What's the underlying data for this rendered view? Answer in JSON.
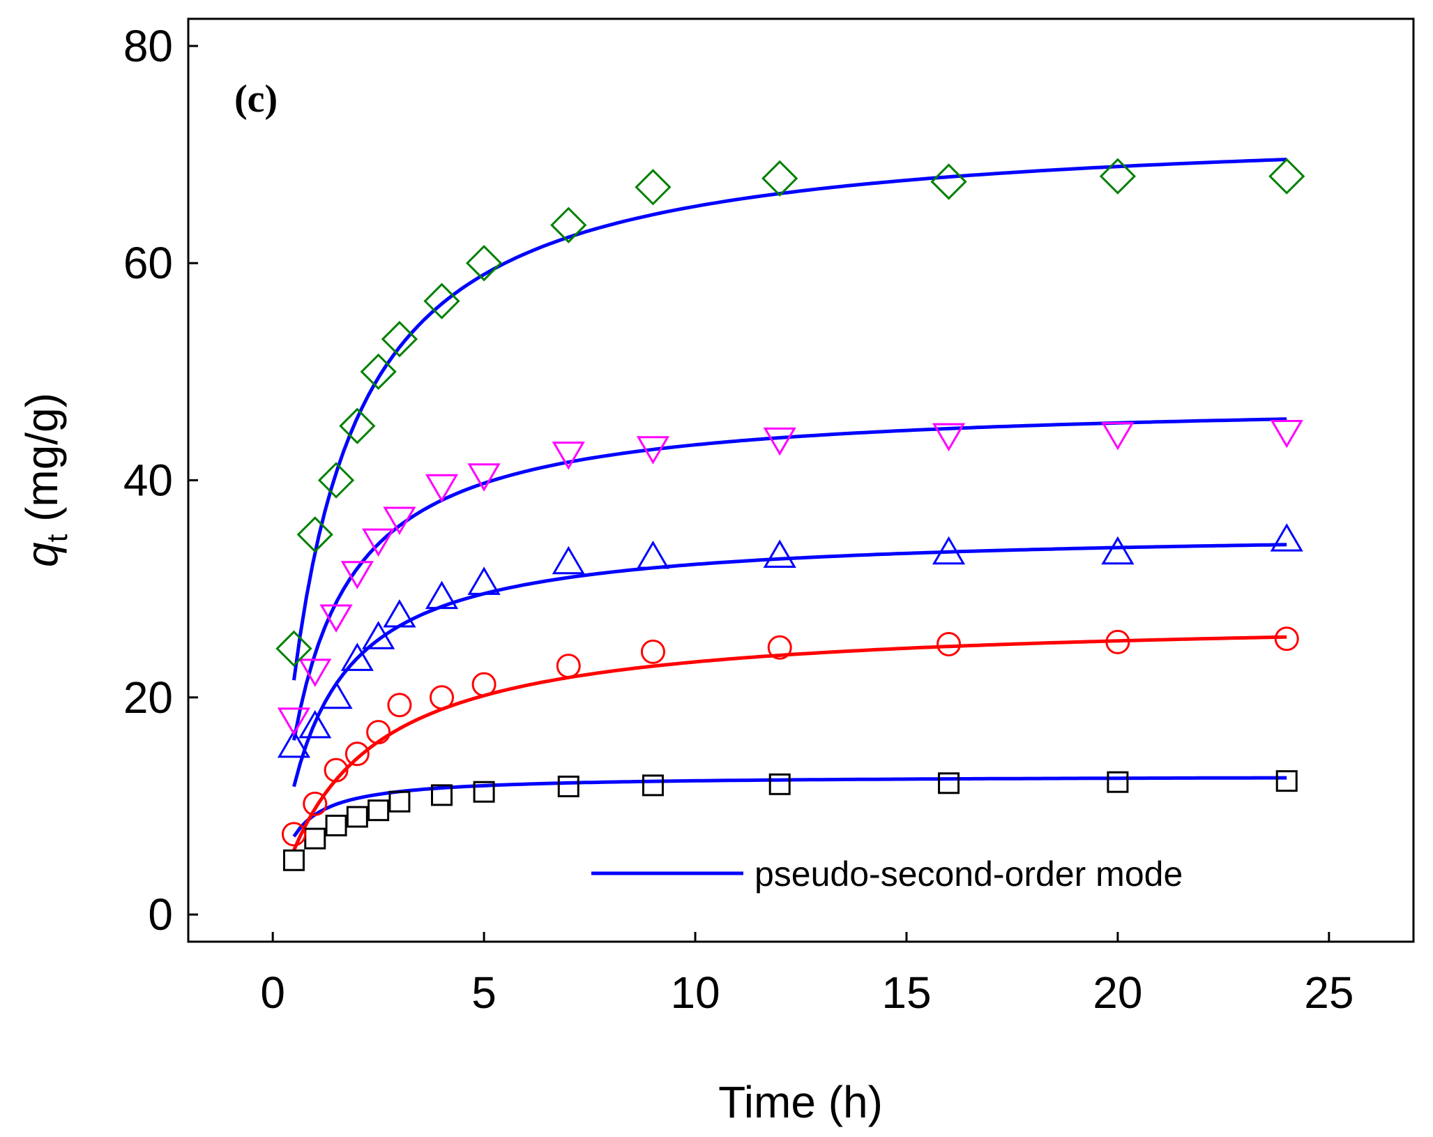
{
  "chart_data": {
    "type": "scatter",
    "panel_label": "(c)",
    "xlabel": "Time (h)",
    "ylabel_main": "q",
    "ylabel_sub": "t",
    "ylabel_unit": " (mg/g)",
    "xlim": [
      -2,
      27
    ],
    "ylim": [
      -2.5,
      82.5
    ],
    "xticks": [
      0,
      5,
      10,
      15,
      20,
      25
    ],
    "yticks": [
      0,
      20,
      40,
      60,
      80
    ],
    "legend": {
      "label": "pseudo-second-order mode",
      "color": "#0000ff",
      "position": "bottom-right"
    },
    "series": [
      {
        "name": "square",
        "marker": "square",
        "color": "#000000",
        "fit_color": "#0000ff",
        "x": [
          0.5,
          1,
          1.5,
          2,
          2.5,
          3,
          4,
          5,
          7,
          9,
          12,
          16,
          20,
          24
        ],
        "y": [
          5.0,
          7.0,
          8.2,
          9.0,
          9.6,
          10.4,
          11.0,
          11.3,
          11.8,
          11.9,
          12.0,
          12.1,
          12.2,
          12.3
        ],
        "fit": {
          "qe": 12.8,
          "k": 0.2
        }
      },
      {
        "name": "circle",
        "marker": "circle",
        "color": "#ff0000",
        "fit_color": "#ff0000",
        "x": [
          0.5,
          1,
          1.5,
          2,
          2.5,
          3,
          4,
          5,
          7,
          9,
          12,
          16,
          20,
          24
        ],
        "y": [
          7.4,
          10.2,
          13.3,
          14.8,
          16.8,
          19.3,
          20.0,
          21.2,
          22.9,
          24.2,
          24.6,
          24.9,
          25.1,
          25.4
        ],
        "fit": {
          "qe": 27.5,
          "k": 0.02
        }
      },
      {
        "name": "triangle-up",
        "marker": "triangle-up",
        "color": "#0000ff",
        "fit_color": "#0000ff",
        "x": [
          0.5,
          1,
          1.5,
          2,
          2.5,
          3,
          4,
          5,
          7,
          9,
          12,
          16,
          20,
          24
        ],
        "y": [
          15.5,
          17.3,
          20.0,
          23.5,
          25.5,
          27.5,
          29.2,
          30.5,
          32.4,
          32.9,
          33.0,
          33.3,
          33.3,
          34.5
        ],
        "fit": {
          "qe": 35.5,
          "k": 0.028
        }
      },
      {
        "name": "triangle-down",
        "marker": "triangle-down",
        "color": "#ff00ff",
        "fit_color": "#0000ff",
        "x": [
          0.5,
          1,
          1.5,
          2,
          2.5,
          3,
          4,
          5,
          7,
          9,
          12,
          16,
          20,
          24
        ],
        "y": [
          18.0,
          22.5,
          27.5,
          31.5,
          34.5,
          36.5,
          39.5,
          40.5,
          42.5,
          43.0,
          43.8,
          44.2,
          44.3,
          44.5
        ],
        "fit": {
          "qe": 47.5,
          "k": 0.0215
        }
      },
      {
        "name": "diamond",
        "marker": "diamond",
        "color": "#008000",
        "fit_color": "#0000ff",
        "x": [
          0.5,
          1,
          1.5,
          2,
          2.5,
          3,
          4,
          5,
          7,
          9,
          12,
          16,
          20,
          24
        ],
        "y": [
          24.5,
          35.0,
          40.0,
          45.0,
          50.0,
          53.0,
          56.5,
          60.0,
          63.5,
          67.0,
          67.8,
          67.5,
          68.0,
          68.0
        ],
        "fit": {
          "qe": 73.0,
          "k": 0.0115
        }
      }
    ]
  }
}
